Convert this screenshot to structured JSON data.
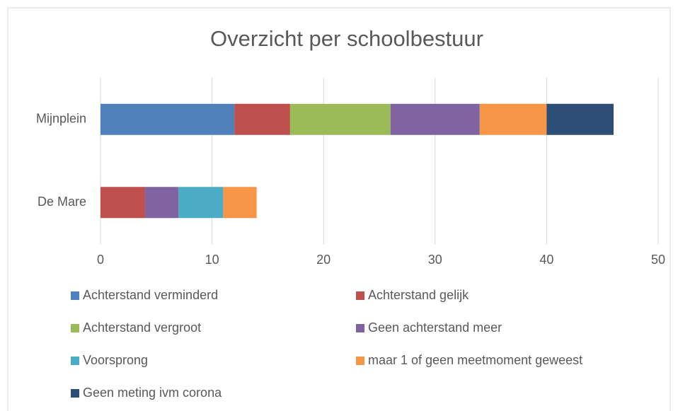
{
  "chart_data": {
    "type": "stacked-barh",
    "title": "Overzicht per schoolbestuur",
    "categories": [
      "Mijnplein",
      "De Mare"
    ],
    "series": [
      {
        "name": "Achterstand verminderd",
        "color": "#4f81bd",
        "values": [
          12,
          0
        ]
      },
      {
        "name": "Achterstand gelijk",
        "color": "#c0504d",
        "values": [
          5,
          4
        ]
      },
      {
        "name": "Achterstand vergroot",
        "color": "#9bbb59",
        "values": [
          9,
          0
        ]
      },
      {
        "name": "Geen achterstand meer",
        "color": "#8064a2",
        "values": [
          8,
          3
        ]
      },
      {
        "name": "Voorsprong",
        "color": "#4bacc6",
        "values": [
          0,
          4
        ]
      },
      {
        "name": "maar 1 of geen meetmoment geweest",
        "color": "#f79646",
        "values": [
          6,
          3
        ]
      },
      {
        "name": "Geen meting ivm corona",
        "color": "#2c4d75",
        "values": [
          6,
          0
        ]
      }
    ],
    "xlim": [
      0,
      50
    ],
    "xticks": [
      0,
      10,
      20,
      30,
      40,
      50
    ],
    "grid": true,
    "legend": "bottom"
  }
}
